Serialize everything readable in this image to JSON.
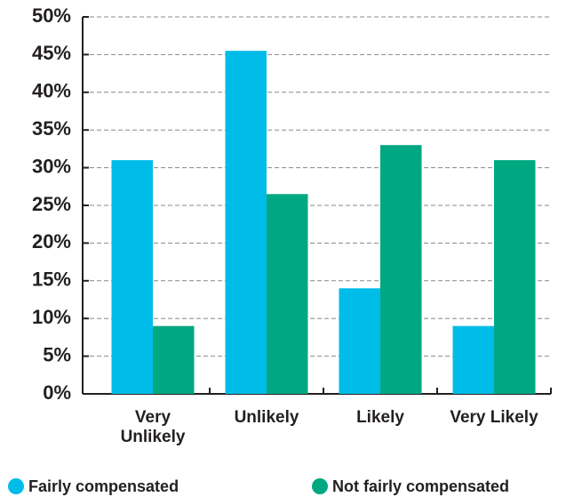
{
  "chart_data": {
    "type": "bar",
    "categories": [
      "Very Unlikely",
      "Unlikely",
      "Likely",
      "Very Likely"
    ],
    "series": [
      {
        "name": "Fairly compensated",
        "color": "#00bce8",
        "values": [
          31,
          45.5,
          14,
          9
        ]
      },
      {
        "name": "Not fairly compensated",
        "color": "#00a882",
        "values": [
          9,
          26.5,
          33,
          31
        ]
      }
    ],
    "ylim": [
      0,
      50
    ],
    "yticks": [
      {
        "value": 0,
        "label": "0%"
      },
      {
        "value": 5,
        "label": "5%"
      },
      {
        "value": 10,
        "label": "10%"
      },
      {
        "value": 15,
        "label": "15%"
      },
      {
        "value": 20,
        "label": "20%"
      },
      {
        "value": 25,
        "label": "25%"
      },
      {
        "value": 30,
        "label": "30%"
      },
      {
        "value": 35,
        "label": "35%"
      },
      {
        "value": 40,
        "label": "40%"
      },
      {
        "value": 45,
        "label": "45%"
      },
      {
        "value": 50,
        "label": "50%"
      }
    ],
    "grid": true
  }
}
